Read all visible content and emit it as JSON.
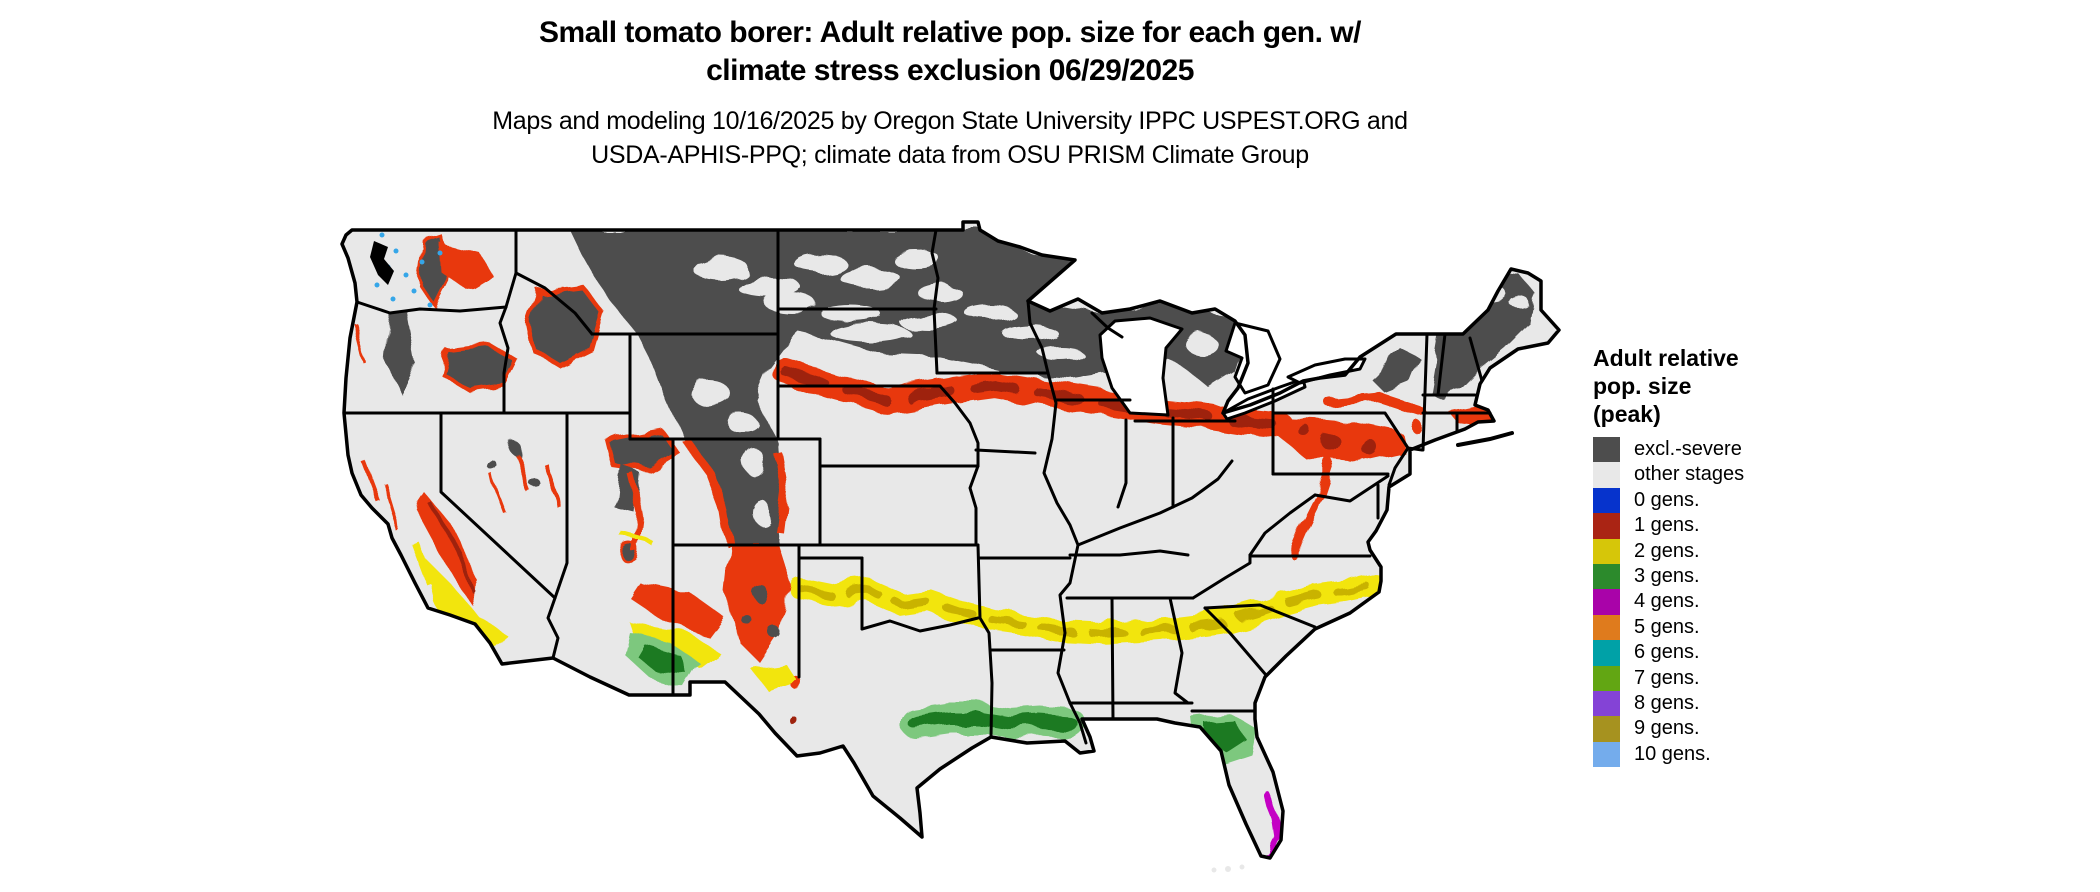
{
  "title": {
    "line1": "Small tomato borer: Adult relative pop. size for each gen. w/",
    "line2": "climate stress exclusion 06/29/2025"
  },
  "subtitle": {
    "line1": "Maps and modeling 10/16/2025 by Oregon State University IPPC USPEST.ORG and",
    "line2": "USDA-APHIS-PPQ; climate data from OSU PRISM Climate Group"
  },
  "legend": {
    "title_lines": [
      "Adult relative",
      "pop. size",
      "(peak)"
    ],
    "items": [
      {
        "label": "excl.-severe",
        "color": "#4d4d4d"
      },
      {
        "label": "other stages",
        "color": "#e8e8e8"
      },
      {
        "label": "0 gens.",
        "color": "#0633cc"
      },
      {
        "label": "1 gens.",
        "color": "#aa2414"
      },
      {
        "label": "2 gens.",
        "color": "#d6c609"
      },
      {
        "label": "3 gens.",
        "color": "#2c8a2c"
      },
      {
        "label": "4 gens.",
        "color": "#a903a9"
      },
      {
        "label": "5 gens.",
        "color": "#df7b1d"
      },
      {
        "label": "6 gens.",
        "color": "#00a1a7"
      },
      {
        "label": "7 gens.",
        "color": "#62a613"
      },
      {
        "label": "8 gens.",
        "color": "#8443d6"
      },
      {
        "label": "9 gens.",
        "color": "#a6921f"
      },
      {
        "label": "10 gens.",
        "color": "#74acec"
      }
    ]
  },
  "map": {
    "region": "Contiguous United States",
    "colors": {
      "excluded": "#4d4d4d",
      "other_stages": "#e8e8e8",
      "gen1_bright": "#e8380e",
      "gen1_dark": "#9e220c",
      "gen2_bright": "#f2e50c",
      "gen2_dark": "#c9b303",
      "gen3_dark": "#1d7a22",
      "gen3_light": "#7dc87e",
      "gen4": "#c404c4",
      "specks": "#35a6e8",
      "water": "#ffffff",
      "state_border": "#000000"
    }
  }
}
